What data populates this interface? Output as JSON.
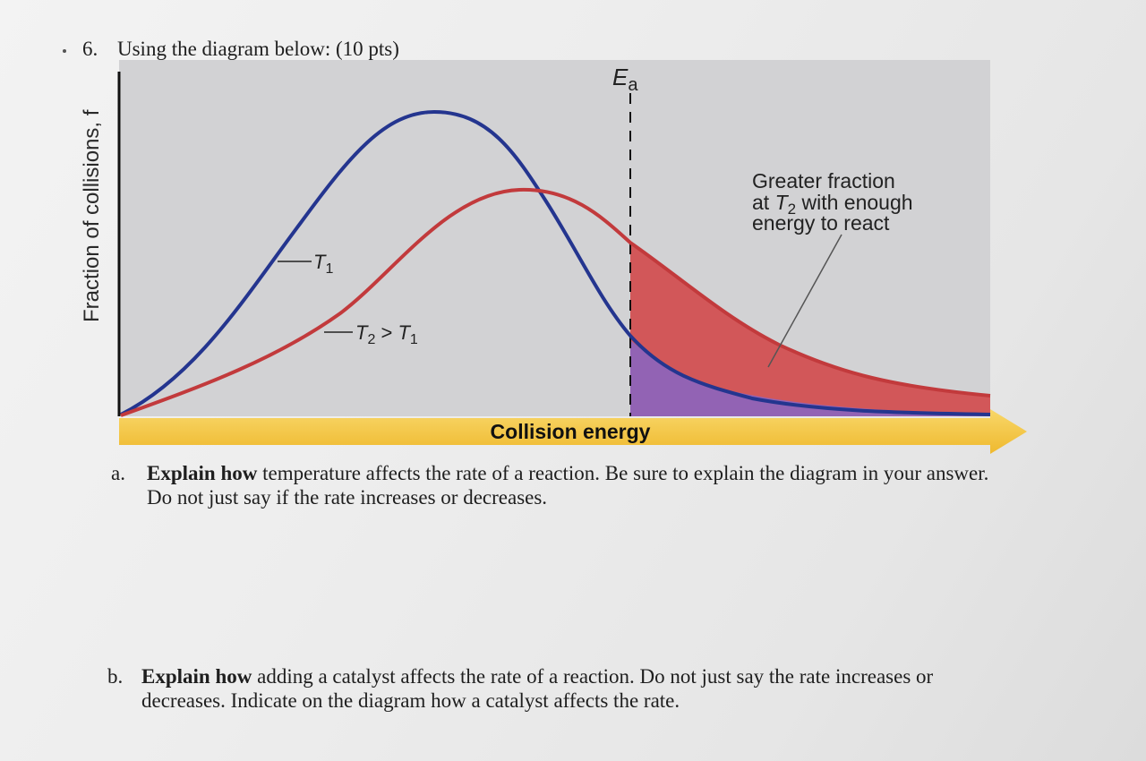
{
  "question": {
    "number": "6.",
    "title": "Using the diagram below: (10 pts)"
  },
  "diagram": {
    "ylabel": "Fraction of collisions, f",
    "xlabel": "Collision energy",
    "ea_label": {
      "main": "E",
      "sub": "a"
    },
    "curve_t1": {
      "main": "T",
      "sub": "1"
    },
    "curve_t2": {
      "main1": "T",
      "sub1": "2",
      "op": " > ",
      "main2": "T",
      "sub2": "1"
    },
    "annotation": {
      "line1": "Greater fraction",
      "line2_pre": "at ",
      "line2_T": "T",
      "line2_sub": "2",
      "line2_post": " with enough",
      "line3": "energy to react"
    },
    "colors": {
      "panel": "#d2d2d4",
      "t1_curve": "#24358f",
      "t2_curve": "#c23a3c",
      "t2_fill": "#d25759",
      "overlap_fill": "#9263b4",
      "axis_arrow": "#f3c13f"
    }
  },
  "part_a": {
    "letter": "a.",
    "bold": "Explain how",
    "rest": " temperature affects the rate of a reaction.  Be sure to explain the diagram in your answer.  Do not just say if the rate increases or decreases."
  },
  "part_b": {
    "letter": "b.",
    "bold": "Explain how",
    "rest": " adding a catalyst affects the rate of a reaction.  Do not just say the rate increases or decreases.  Indicate on the diagram how a catalyst affects the rate."
  }
}
